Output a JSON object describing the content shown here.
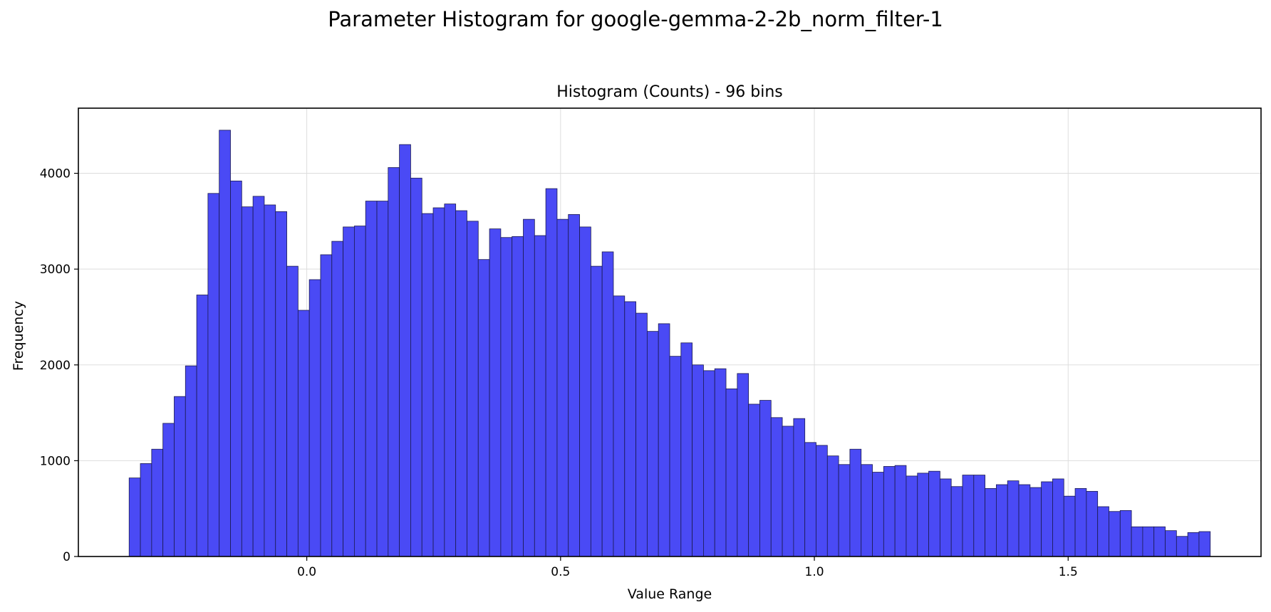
{
  "chart_data": {
    "type": "bar",
    "title": "Parameter Histogram for google-gemma-2-2b_norm_filter-1",
    "subtitle": "Histogram (Counts) - 96 bins",
    "xlabel": "Value Range",
    "ylabel": "Frequency",
    "bins": 96,
    "bin_start": -0.35,
    "bin_end": 1.78,
    "xlim": [
      -0.45,
      1.88
    ],
    "ylim": [
      0,
      4680
    ],
    "xticks": [
      0.0,
      0.5,
      1.0,
      1.5
    ],
    "xtick_labels": [
      "0.0",
      "0.5",
      "1.0",
      "1.5"
    ],
    "yticks": [
      0,
      1000,
      2000,
      3000,
      4000
    ],
    "ytick_labels": [
      "0",
      "1000",
      "2000",
      "3000",
      "4000"
    ],
    "grid": true,
    "bar_color": "#4a4af5",
    "bar_edge_color": "#1a1a50",
    "values": [
      820,
      970,
      1120,
      1390,
      1670,
      1990,
      2730,
      3790,
      4450,
      3920,
      3650,
      3760,
      3670,
      3600,
      3030,
      2570,
      2890,
      3150,
      3290,
      3440,
      3450,
      3710,
      3710,
      4060,
      4300,
      3950,
      3580,
      3640,
      3680,
      3610,
      3500,
      3100,
      3420,
      3330,
      3340,
      3520,
      3350,
      3840,
      3520,
      3570,
      3440,
      3030,
      3180,
      2720,
      2660,
      2540,
      2350,
      2430,
      2090,
      2230,
      2000,
      1940,
      1960,
      1750,
      1910,
      1590,
      1630,
      1450,
      1360,
      1440,
      1190,
      1160,
      1050,
      960,
      1120,
      960,
      880,
      940,
      950,
      840,
      870,
      890,
      810,
      730,
      850,
      850,
      710,
      750,
      790,
      750,
      720,
      780,
      810,
      630,
      710,
      680,
      520,
      470,
      480,
      310,
      310,
      310,
      270,
      210,
      250,
      260
    ]
  }
}
